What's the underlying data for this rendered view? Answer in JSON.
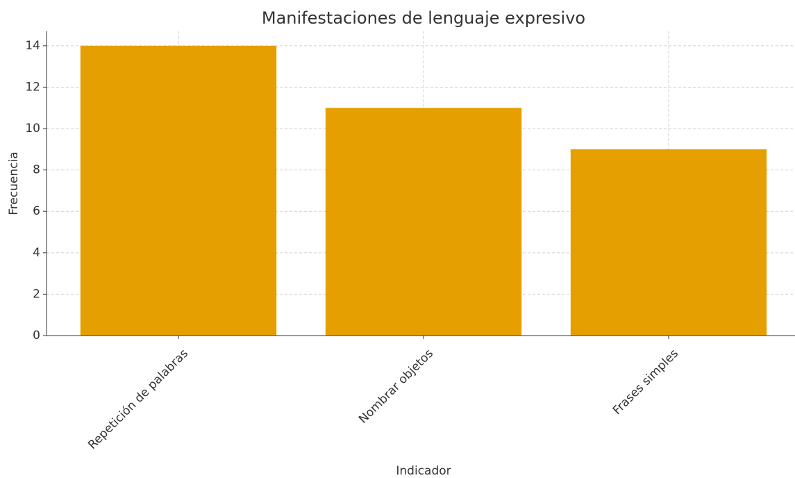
{
  "chart_data": {
    "type": "bar",
    "title": "Manifestaciones de lenguaje expresivo",
    "x_label": "Indicador",
    "y_label": "Frecuencia",
    "categories": [
      "Repetición de palabras",
      "Nombrar objetos",
      "Frases simples"
    ],
    "values": [
      14,
      11,
      9
    ],
    "color": "#e69f00",
    "ylim": [
      0,
      14.7
    ],
    "yticks": [
      0,
      2,
      4,
      6,
      8,
      10,
      12,
      14
    ],
    "grid": true
  }
}
